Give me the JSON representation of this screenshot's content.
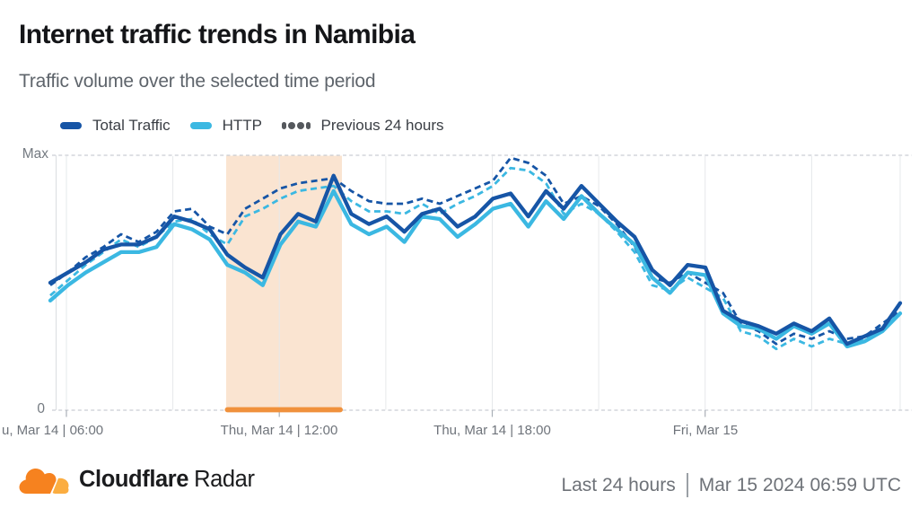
{
  "header": {
    "title": "Internet traffic trends in Namibia",
    "subtitle": "Traffic volume over the selected time period"
  },
  "legend": {
    "items": [
      {
        "label": "Total Traffic",
        "color": "#1655A6",
        "style": "solid"
      },
      {
        "label": "HTTP",
        "color": "#3BB8E2",
        "style": "solid"
      },
      {
        "label": "Previous 24 hours",
        "color": "#55585D",
        "style": "dashed"
      }
    ]
  },
  "chart": {
    "y_axis": {
      "max_label": "Max",
      "zero_label": "0"
    },
    "x_ticks": [
      {
        "label": "u, Mar 14 | 06:00"
      },
      {
        "label": "Thu, Mar 14 | 12:00"
      },
      {
        "label": "Thu, Mar 14 | 18:00"
      },
      {
        "label": "Fri, Mar 15"
      }
    ]
  },
  "chart_data": {
    "type": "line",
    "title": "Internet traffic trends in Namibia",
    "subtitle": "Traffic volume over the selected time period",
    "x_axis": {
      "tick_labels": [
        "u, Mar 14 | 06:00",
        "Thu, Mar 14 | 12:00",
        "Thu, Mar 14 | 18:00",
        "Fri, Mar 15"
      ],
      "range": "Last 24 hours ending Mar 15 2024 06:59 UTC",
      "points_per_series": 49,
      "sampling": "approx. 30 min per point"
    },
    "y_axis": {
      "tick_labels": [
        "0",
        "Max"
      ],
      "min": 0,
      "max": 100,
      "unit": "percent of max traffic"
    },
    "grid": "vertical, every 3 hours",
    "legend_position": "top-left",
    "annotations": [
      {
        "type": "highlight-band",
        "from": "Thu, Mar 14 ~10:00",
        "to": "Thu, Mar 14 ~13:15",
        "fill": "#FAE4D1",
        "underline_color": "#F0913C"
      }
    ],
    "series": [
      {
        "name": "Total Traffic",
        "style": "solid",
        "color": "#1655A6",
        "values": [
          50,
          54,
          58,
          63,
          65,
          65,
          68,
          76,
          74,
          71,
          61,
          56,
          52,
          69,
          77,
          74,
          92,
          77,
          73,
          76,
          70,
          77,
          79,
          72,
          76,
          83,
          85,
          76,
          86,
          79,
          88,
          81,
          74,
          68,
          55,
          49,
          57,
          56,
          39,
          35,
          33,
          30,
          34,
          31,
          36,
          26,
          29,
          32,
          42
        ]
      },
      {
        "name": "HTTP",
        "style": "solid",
        "color": "#3BB8E2",
        "values": [
          43,
          49,
          54,
          58,
          62,
          62,
          64,
          73,
          71,
          67,
          57,
          54,
          49,
          65,
          74,
          72,
          86,
          73,
          69,
          72,
          66,
          76,
          75,
          68,
          73,
          79,
          81,
          72,
          82,
          75,
          84,
          77,
          71,
          65,
          52,
          46,
          54,
          53,
          38,
          33,
          32,
          28,
          33,
          30,
          34,
          25,
          27,
          31,
          38
        ]
      },
      {
        "name": "Total Traffic (previous 24 hours)",
        "style": "dashed",
        "color": "#1655A6",
        "values": [
          49,
          54,
          60,
          64,
          69,
          66,
          70,
          78,
          79,
          72,
          69,
          79,
          83,
          87,
          89,
          90,
          91,
          86,
          82,
          81,
          81,
          83,
          81,
          84,
          87,
          90,
          99,
          97,
          92,
          81,
          84,
          80,
          73,
          64,
          52,
          50,
          54,
          50,
          46,
          34,
          31,
          26,
          30,
          28,
          31,
          28,
          29,
          34,
          39
        ]
      },
      {
        "name": "HTTP (previous 24 hours)",
        "style": "dashed",
        "color": "#3BB8E2",
        "values": [
          45,
          51,
          57,
          62,
          67,
          64,
          68,
          74,
          75,
          69,
          65,
          76,
          79,
          83,
          86,
          87,
          88,
          82,
          78,
          78,
          77,
          81,
          77,
          81,
          84,
          88,
          95,
          94,
          89,
          77,
          81,
          77,
          70,
          62,
          49,
          47,
          52,
          48,
          44,
          31,
          29,
          24,
          28,
          25,
          28,
          26,
          28,
          33,
          38
        ]
      }
    ]
  },
  "footer": {
    "brand_bold": "Cloudflare",
    "brand_regular": "Radar",
    "time_range": "Last 24 hours",
    "timestamp": "Mar 15 2024 06:59 UTC"
  }
}
